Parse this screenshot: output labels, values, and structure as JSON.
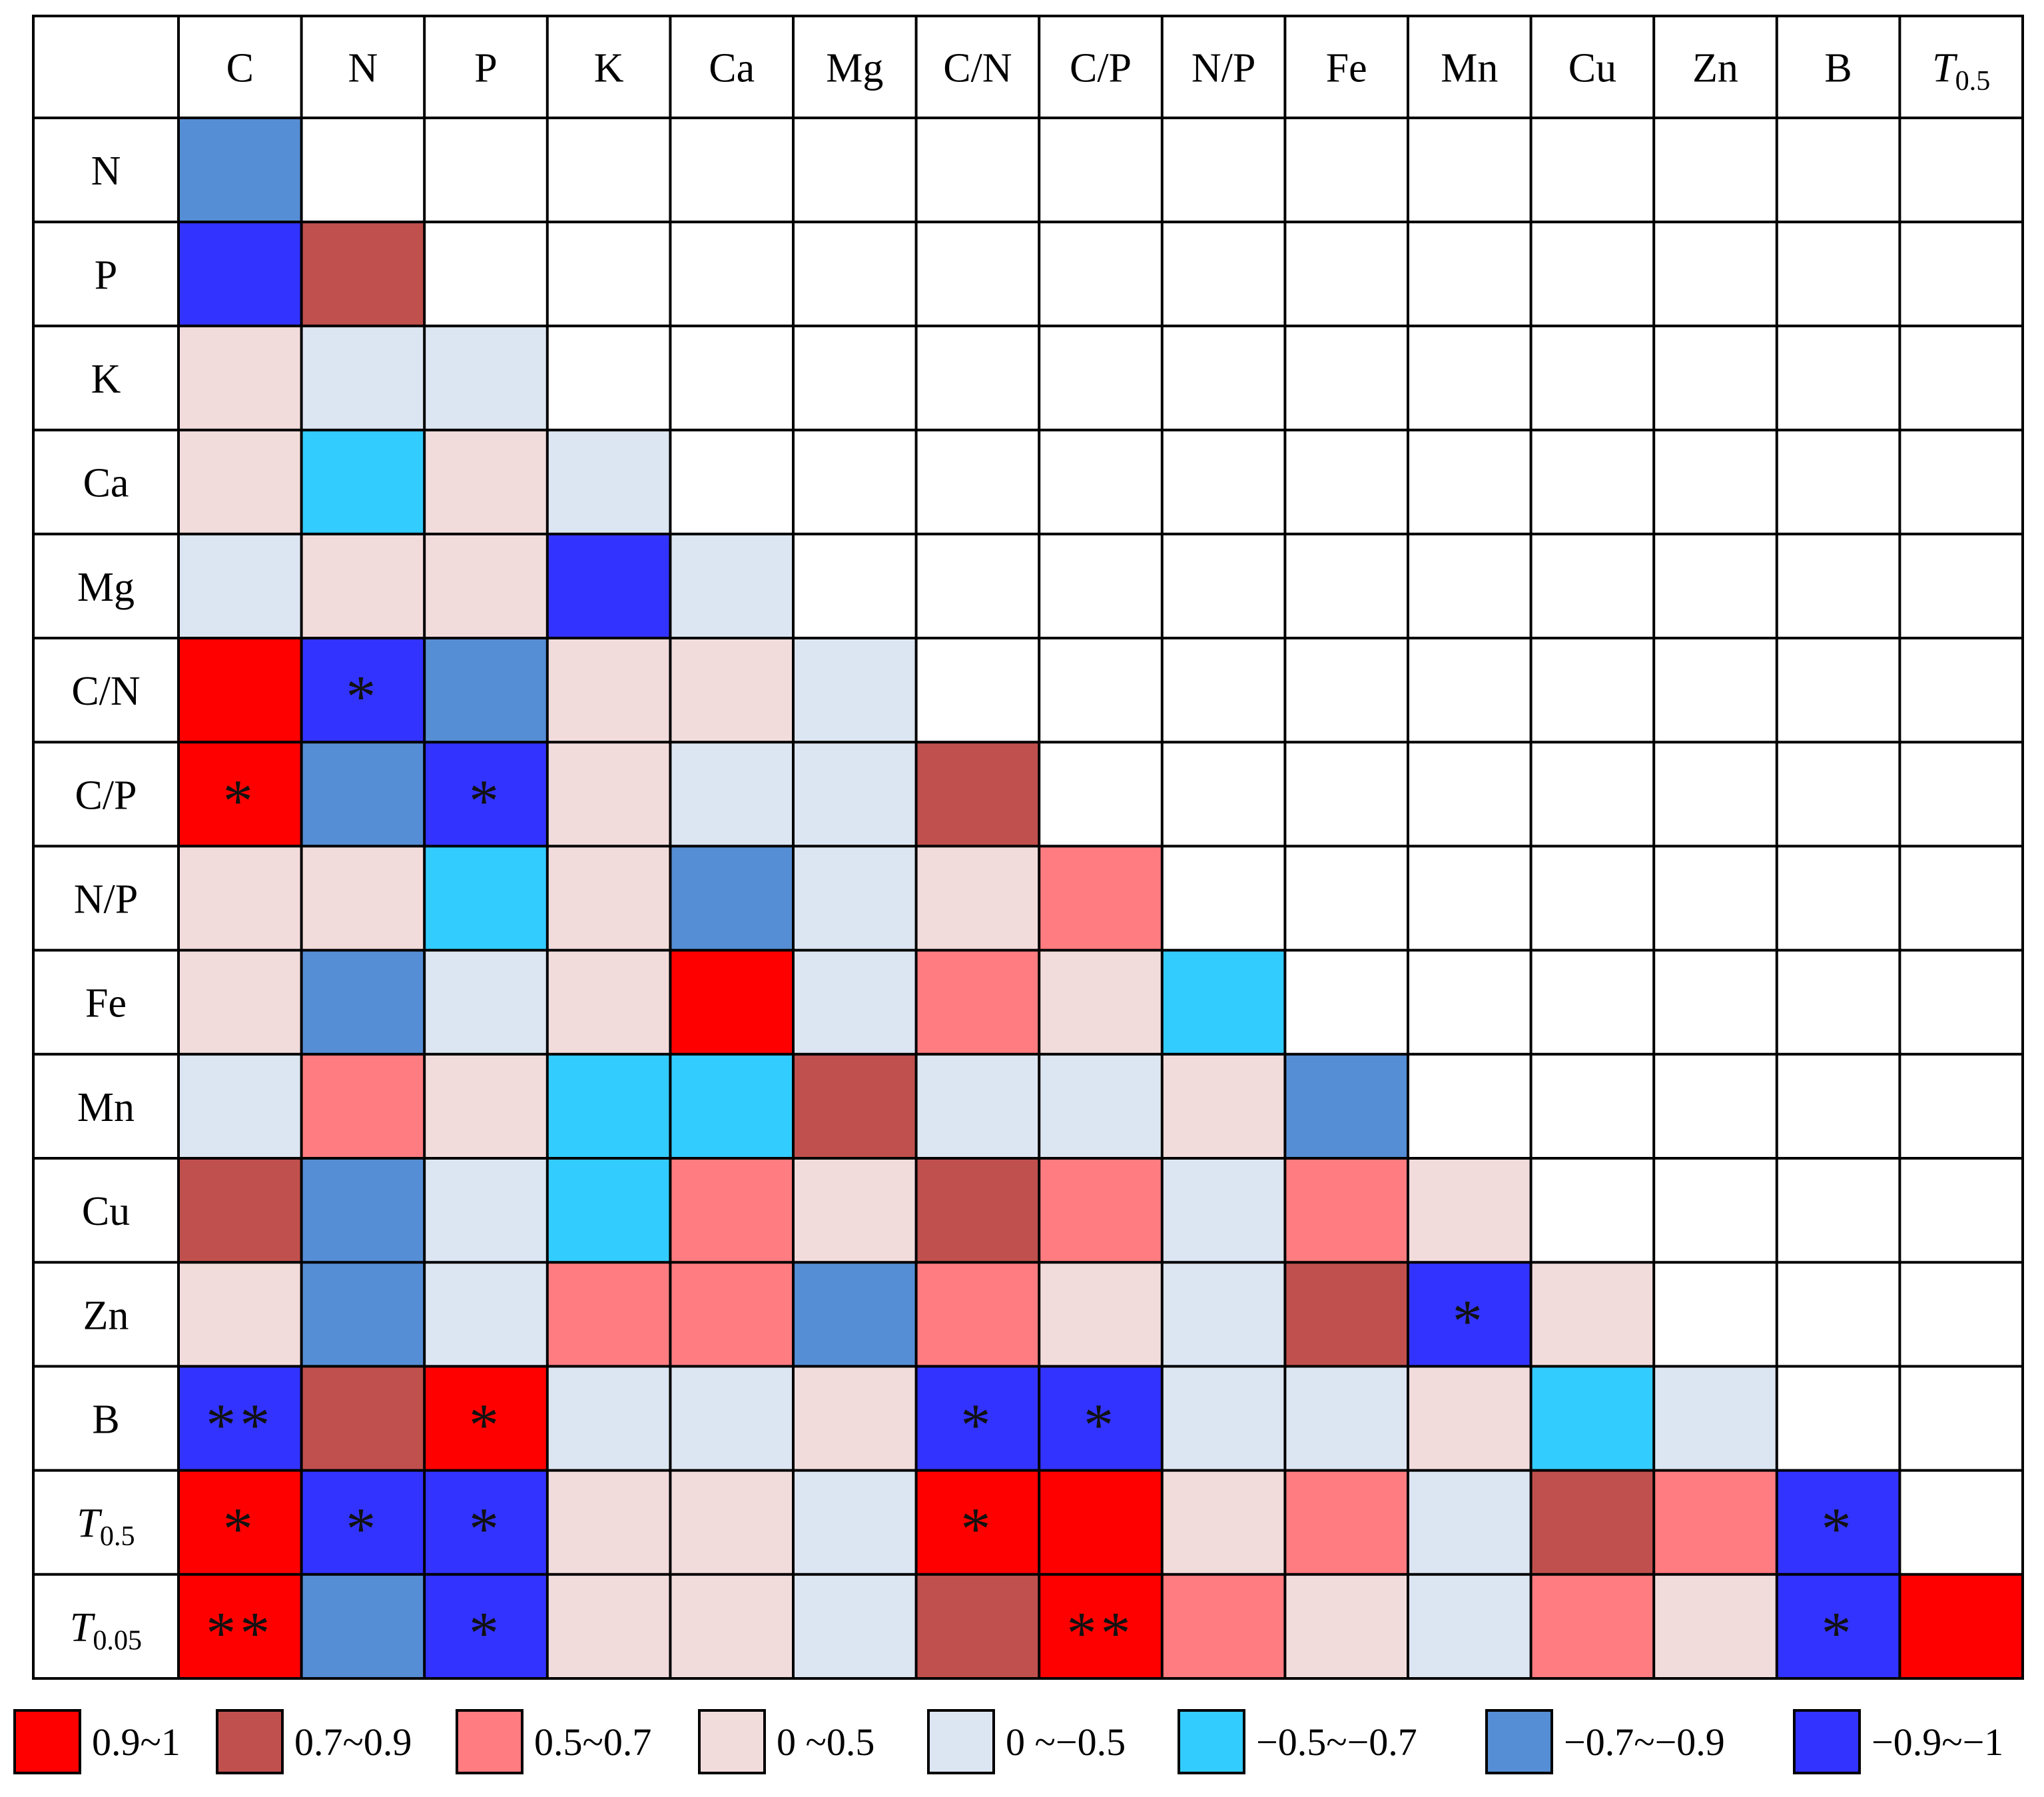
{
  "chart_data": {
    "type": "heatmap",
    "columns": [
      {
        "base": "C",
        "sub": ""
      },
      {
        "base": "N",
        "sub": ""
      },
      {
        "base": "P",
        "sub": ""
      },
      {
        "base": "K",
        "sub": ""
      },
      {
        "base": "Ca",
        "sub": ""
      },
      {
        "base": "Mg",
        "sub": ""
      },
      {
        "base": "C/N",
        "sub": ""
      },
      {
        "base": "C/P",
        "sub": ""
      },
      {
        "base": "N/P",
        "sub": ""
      },
      {
        "base": "Fe",
        "sub": ""
      },
      {
        "base": "Mn",
        "sub": ""
      },
      {
        "base": "Cu",
        "sub": ""
      },
      {
        "base": "Zn",
        "sub": ""
      },
      {
        "base": "B",
        "sub": ""
      },
      {
        "base": "T",
        "sub": "0.5"
      }
    ],
    "rows": [
      {
        "base": "N",
        "sub": ""
      },
      {
        "base": "P",
        "sub": ""
      },
      {
        "base": "K",
        "sub": ""
      },
      {
        "base": "Ca",
        "sub": ""
      },
      {
        "base": "Mg",
        "sub": ""
      },
      {
        "base": "C/N",
        "sub": ""
      },
      {
        "base": "C/P",
        "sub": ""
      },
      {
        "base": "N/P",
        "sub": ""
      },
      {
        "base": "Fe",
        "sub": ""
      },
      {
        "base": "Mn",
        "sub": ""
      },
      {
        "base": "Cu",
        "sub": ""
      },
      {
        "base": "Zn",
        "sub": ""
      },
      {
        "base": "B",
        "sub": ""
      },
      {
        "base": "T",
        "sub": "0.5"
      },
      {
        "base": "T",
        "sub": "0.05"
      }
    ],
    "legend": [
      {
        "label": "0.9~1",
        "color": "#ff0000"
      },
      {
        "label": "0.7~0.9",
        "color": "#c0504d"
      },
      {
        "label": "0.5~0.7",
        "color": "#ff7c80"
      },
      {
        "label": "0 ~0.5",
        "color": "#f2dcdb"
      },
      {
        "label": "0 ~−0.5",
        "color": "#dce6f2"
      },
      {
        "label": "−0.5~−0.7",
        "color": "#33ccff"
      },
      {
        "label": "−0.7~−0.9",
        "color": "#558ed5"
      },
      {
        "label": "−0.9~−1",
        "color": "#3333ff"
      }
    ],
    "cells": [
      [
        6
      ],
      [
        7,
        1
      ],
      [
        3,
        4,
        4
      ],
      [
        3,
        5,
        3,
        4
      ],
      [
        4,
        3,
        3,
        7,
        4
      ],
      [
        0,
        7,
        6,
        3,
        3,
        4
      ],
      [
        0,
        6,
        7,
        3,
        4,
        4,
        1
      ],
      [
        3,
        3,
        5,
        3,
        6,
        4,
        3,
        2
      ],
      [
        3,
        6,
        4,
        3,
        0,
        4,
        2,
        3,
        5
      ],
      [
        4,
        2,
        3,
        5,
        5,
        1,
        4,
        4,
        3,
        6
      ],
      [
        1,
        6,
        4,
        5,
        2,
        3,
        1,
        2,
        4,
        2,
        3
      ],
      [
        3,
        6,
        4,
        2,
        2,
        6,
        2,
        3,
        4,
        1,
        7,
        3
      ],
      [
        7,
        1,
        0,
        4,
        4,
        3,
        7,
        7,
        4,
        4,
        3,
        5,
        4
      ],
      [
        0,
        7,
        7,
        3,
        3,
        4,
        0,
        0,
        3,
        2,
        4,
        1,
        2,
        7
      ],
      [
        0,
        6,
        7,
        3,
        3,
        4,
        1,
        0,
        2,
        3,
        4,
        2,
        3,
        7,
        0
      ]
    ],
    "significance": [
      [
        ""
      ],
      [
        "",
        ""
      ],
      [
        "",
        "",
        ""
      ],
      [
        "",
        "",
        "",
        ""
      ],
      [
        "",
        "",
        "",
        "",
        ""
      ],
      [
        "",
        "*",
        "",
        "",
        "",
        ""
      ],
      [
        "*",
        "",
        "*",
        "",
        "",
        "",
        ""
      ],
      [
        "",
        "",
        "",
        "",
        "",
        "",
        "",
        ""
      ],
      [
        "",
        "",
        "",
        "",
        "",
        "",
        "",
        "",
        ""
      ],
      [
        "",
        "",
        "",
        "",
        "",
        "",
        "",
        "",
        "",
        ""
      ],
      [
        "",
        "",
        "",
        "",
        "",
        "",
        "",
        "",
        "",
        "",
        ""
      ],
      [
        "",
        "",
        "",
        "",
        "",
        "",
        "",
        "",
        "",
        "",
        "*",
        ""
      ],
      [
        "**",
        "",
        "*",
        "",
        "",
        "",
        "*",
        "*",
        "",
        "",
        "",
        "",
        ""
      ],
      [
        "*",
        "*",
        "*",
        "",
        "",
        "",
        "*",
        "",
        "",
        "",
        "",
        "",
        "",
        "*"
      ],
      [
        "**",
        "",
        "*",
        "",
        "",
        "",
        "",
        "**",
        "",
        "",
        "",
        "",
        "",
        "*",
        ""
      ]
    ]
  }
}
